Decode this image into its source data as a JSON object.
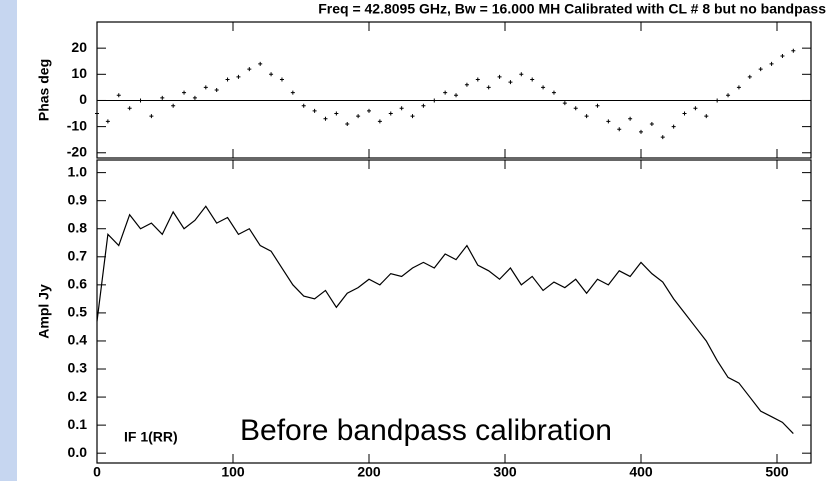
{
  "chart_data": [
    {
      "type": "scatter",
      "title": "Freq = 42.8095 GHz, Bw = 16.000 MH   Calibrated with CL # 8 but no bandpass",
      "ylabel": "Phas deg",
      "x": [
        0,
        8,
        16,
        24,
        32,
        40,
        48,
        56,
        64,
        72,
        80,
        88,
        96,
        104,
        112,
        120,
        128,
        136,
        144,
        152,
        160,
        168,
        176,
        184,
        192,
        200,
        208,
        216,
        224,
        232,
        240,
        248,
        256,
        264,
        272,
        280,
        288,
        296,
        304,
        312,
        320,
        328,
        336,
        344,
        352,
        360,
        368,
        376,
        384,
        392,
        400,
        408,
        416,
        424,
        432,
        440,
        448,
        456,
        464,
        472,
        480,
        488,
        496,
        504,
        512
      ],
      "values": [
        -5,
        -8,
        2,
        -3,
        0,
        -6,
        1,
        -2,
        3,
        1,
        5,
        4,
        8,
        9,
        12,
        14,
        10,
        8,
        3,
        -2,
        -4,
        -7,
        -5,
        -9,
        -6,
        -4,
        -8,
        -5,
        -3,
        -6,
        -2,
        0,
        3,
        2,
        6,
        8,
        5,
        9,
        7,
        10,
        8,
        5,
        3,
        -1,
        -3,
        -6,
        -2,
        -8,
        -11,
        -7,
        -12,
        -9,
        -14,
        -10,
        -5,
        -3,
        -6,
        0,
        2,
        5,
        9,
        12,
        14,
        17,
        19
      ],
      "color": "#000000",
      "xlim": [
        0,
        525
      ],
      "xticks": [
        0,
        100,
        200,
        300,
        400,
        500
      ],
      "show_xtick_labels": false,
      "ylim": [
        -22,
        30
      ],
      "yticks": [
        20,
        10,
        0,
        -10,
        -20
      ],
      "zero_line": true
    },
    {
      "type": "line",
      "ylabel": "Ampl Jy",
      "x": [
        0,
        8,
        16,
        24,
        32,
        40,
        48,
        56,
        64,
        72,
        80,
        88,
        96,
        104,
        112,
        120,
        128,
        136,
        144,
        152,
        160,
        168,
        176,
        184,
        192,
        200,
        208,
        216,
        224,
        232,
        240,
        248,
        256,
        264,
        272,
        280,
        288,
        296,
        304,
        312,
        320,
        328,
        336,
        344,
        352,
        360,
        368,
        376,
        384,
        392,
        400,
        408,
        416,
        424,
        432,
        440,
        448,
        456,
        464,
        472,
        480,
        488,
        496,
        504,
        512
      ],
      "values": [
        0.47,
        0.78,
        0.74,
        0.85,
        0.8,
        0.82,
        0.78,
        0.86,
        0.8,
        0.83,
        0.88,
        0.82,
        0.84,
        0.78,
        0.8,
        0.74,
        0.72,
        0.66,
        0.6,
        0.56,
        0.55,
        0.58,
        0.52,
        0.57,
        0.59,
        0.62,
        0.6,
        0.64,
        0.63,
        0.66,
        0.68,
        0.66,
        0.71,
        0.69,
        0.74,
        0.67,
        0.65,
        0.62,
        0.66,
        0.6,
        0.63,
        0.58,
        0.61,
        0.59,
        0.62,
        0.57,
        0.62,
        0.6,
        0.65,
        0.63,
        0.68,
        0.64,
        0.61,
        0.55,
        0.5,
        0.45,
        0.4,
        0.33,
        0.27,
        0.25,
        0.2,
        0.15,
        0.13,
        0.11,
        0.07
      ],
      "color": "#000000",
      "xlim": [
        0,
        525
      ],
      "xticks": [
        0,
        100,
        200,
        300,
        400,
        500
      ],
      "show_xtick_labels": true,
      "ylim": [
        -0.035,
        1.045
      ],
      "yticks": [
        {
          "value": 1,
          "label": "1.0"
        },
        0.9,
        0.8,
        0.7,
        0.6,
        0.5,
        0.4,
        0.3,
        0.2,
        0.1,
        {
          "value": 0,
          "label": "0.0"
        }
      ],
      "annotations": [
        "IF 1(RR)",
        "Before bandpass calibration"
      ],
      "annotation_colors": [
        "#000000",
        "#1e8c1e"
      ]
    }
  ]
}
